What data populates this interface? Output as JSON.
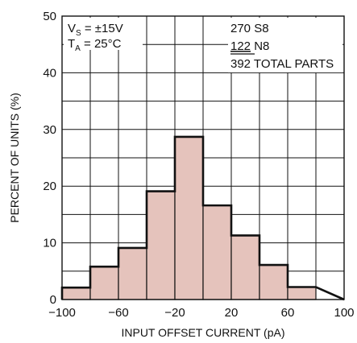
{
  "chart_data": {
    "type": "bar",
    "title": "",
    "xlabel": "INPUT OFFSET CURRENT (pA)",
    "ylabel": "PERCENT OF UNITS (%)",
    "xlim": [
      -100,
      100
    ],
    "ylim": [
      0,
      50
    ],
    "x_ticks": [
      -100,
      -60,
      -20,
      20,
      60,
      100
    ],
    "x_tick_labels": [
      "−100",
      "−60",
      "−20",
      "20",
      "60",
      "100"
    ],
    "y_ticks": [
      0,
      10,
      20,
      30,
      40,
      50
    ],
    "grid": true,
    "bin_edges": [
      -100,
      -80,
      -60,
      -40,
      -20,
      0,
      20,
      40,
      60,
      80
    ],
    "values": [
      2.1,
      5.8,
      9.1,
      19.1,
      28.7,
      16.6,
      11.3,
      6.1,
      2.2
    ],
    "bar_fill_color": "#e5c3bc",
    "bar_edge_color": "#111111",
    "annotations": {
      "conditions": {
        "vs_main": "V",
        "vs_sub": "S",
        "vs_rest": " = ±15V",
        "ta_main": "T",
        "ta_sub": "A",
        "ta_rest": " = 25°C"
      },
      "parts": {
        "line1": "270 S8",
        "line2_num": "122",
        "line2_rest": " N8",
        "line3_num": "392",
        "line3_rest": " TOTAL PARTS"
      }
    }
  }
}
